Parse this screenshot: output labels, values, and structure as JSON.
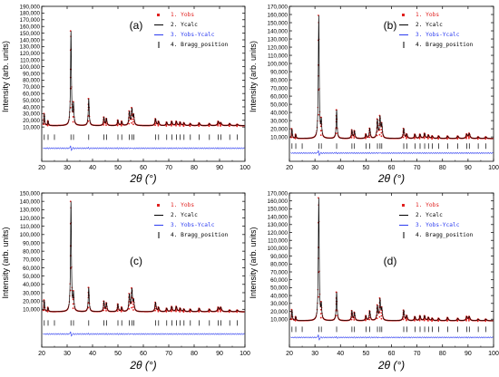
{
  "figure": {
    "panels": [
      {
        "panel_label": "(a)",
        "yticks": [
          "10,000",
          "20,000",
          "30,000",
          "40,000",
          "50,000",
          "60,000",
          "70,000",
          "80,000",
          "90,000",
          "100,000",
          "110,000",
          "120,000",
          "130,000",
          "140,000",
          "150,000",
          "160,000",
          "170,000",
          "180,000",
          "190,000"
        ],
        "xticks": [
          "20",
          "30",
          "40",
          "50",
          "60",
          "70",
          "80",
          "90",
          "100"
        ],
        "ylabel": "Intensity (arb. units)",
        "xlabel": "2θ (°)",
        "legend": [
          "1. Yobs",
          "2. Ycalc",
          "3. Yobs-Ycalc",
          "4. Bragg_position"
        ]
      },
      {
        "panel_label": "(b)",
        "yticks": [
          "10,000",
          "20,000",
          "30,000",
          "40,000",
          "50,000",
          "60,000",
          "70,000",
          "80,000",
          "90,000",
          "100,000",
          "110,000",
          "120,000",
          "130,000",
          "140,000",
          "150,000",
          "160,000",
          "170,000"
        ],
        "xticks": [
          "20",
          "30",
          "40",
          "50",
          "60",
          "70",
          "80",
          "90",
          "100"
        ],
        "ylabel": "Intensity (arb. units)",
        "xlabel": "2θ (°)",
        "legend": [
          "1. Yobs",
          "2. Ycalc",
          "3. Yobs-Ycalc",
          "4. Bragg_position"
        ]
      },
      {
        "panel_label": "(c)",
        "yticks": [
          "10,000",
          "20,000",
          "30,000",
          "40,000",
          "50,000",
          "60,000",
          "70,000",
          "80,000",
          "90,000",
          "100,000",
          "110,000",
          "120,000",
          "130,000",
          "140,000",
          "150,000"
        ],
        "xticks": [
          "20",
          "30",
          "40",
          "50",
          "60",
          "70",
          "80",
          "90",
          "100"
        ],
        "ylabel": "Intensity (arb. units)",
        "xlabel": "2θ (°)",
        "legend": [
          "1. Yobs",
          "2. Ycalc",
          "3. Yobs-Ycalc",
          "4. Bragg_position"
        ]
      },
      {
        "panel_label": "(d)",
        "yticks": [
          "10,000",
          "20,000",
          "30,000",
          "40,000",
          "50,000",
          "60,000",
          "70,000",
          "80,000",
          "90,000",
          "100,000",
          "110,000",
          "120,000",
          "130,000",
          "140,000",
          "150,000",
          "160,000",
          "170,000"
        ],
        "xticks": [
          "20",
          "30",
          "40",
          "50",
          "60",
          "70",
          "80",
          "90",
          "100"
        ],
        "ylabel": "Intensity (arb. units)",
        "xlabel": "2θ (°)",
        "legend": [
          "1. Yobs",
          "2. Ycalc",
          "3. Yobs-Ycalc",
          "4. Bragg_position"
        ]
      }
    ]
  },
  "colors": {
    "yobs": "#e0201e",
    "ycalc": "#000000",
    "diff": "#2c3cf0",
    "bragg": "#000000",
    "axis": "#000000"
  },
  "chart_data": [
    {
      "type": "line",
      "title": "(a)",
      "xlabel": "2θ (°)",
      "ylabel": "Intensity (arb. units)",
      "xlim": [
        20,
        100
      ],
      "ylim": [
        -25000,
        190000
      ],
      "legend_position": "top-right",
      "background": 12000,
      "peaks": [
        [
          21.0,
          18000
        ],
        [
          22.5,
          7000
        ],
        [
          31.5,
          140000
        ],
        [
          32.5,
          30000
        ],
        [
          38.5,
          40000
        ],
        [
          44.5,
          12000
        ],
        [
          45.5,
          10000
        ],
        [
          50.0,
          8000
        ],
        [
          51.5,
          6000
        ],
        [
          54.5,
          20000
        ],
        [
          55.5,
          24000
        ],
        [
          56.2,
          14000
        ],
        [
          64.8,
          10000
        ],
        [
          66.0,
          6000
        ],
        [
          69.2,
          5000
        ],
        [
          71.2,
          6000
        ],
        [
          73.0,
          6000
        ],
        [
          74.5,
          5000
        ],
        [
          76.0,
          4000
        ],
        [
          78.5,
          3000
        ],
        [
          82.0,
          4000
        ],
        [
          86.0,
          3000
        ],
        [
          89.5,
          6000
        ],
        [
          90.5,
          4000
        ],
        [
          94.0,
          3000
        ],
        [
          97.0,
          2000
        ]
      ],
      "bragg_positions": [
        21.0,
        22.5,
        25.0,
        31.5,
        32.5,
        38.5,
        44.5,
        45.5,
        50.0,
        51.5,
        54.5,
        55.5,
        56.2,
        64.8,
        66.0,
        69.2,
        71.2,
        73.0,
        74.5,
        76.0,
        78.5,
        82.0,
        86.0,
        89.5,
        90.5,
        94.0,
        97.0
      ],
      "series": [
        {
          "name": "1. Yobs"
        },
        {
          "name": "2. Ycalc"
        },
        {
          "name": "3. Yobs-Ycalc"
        },
        {
          "name": "4. Bragg_position"
        }
      ]
    },
    {
      "type": "line",
      "title": "(b)",
      "xlabel": "2θ (°)",
      "ylabel": "Intensity (arb. units)",
      "xlim": [
        20,
        100
      ],
      "ylim": [
        -25000,
        170000
      ],
      "legend_position": "top-right",
      "background": 8000,
      "peaks": [
        [
          21.0,
          12000
        ],
        [
          22.5,
          5000
        ],
        [
          31.5,
          150000
        ],
        [
          32.5,
          20000
        ],
        [
          38.5,
          35000
        ],
        [
          44.5,
          10000
        ],
        [
          45.5,
          9000
        ],
        [
          50.0,
          5000
        ],
        [
          51.5,
          12000
        ],
        [
          54.5,
          22000
        ],
        [
          55.5,
          25000
        ],
        [
          56.2,
          16000
        ],
        [
          64.8,
          12000
        ],
        [
          66.0,
          5000
        ],
        [
          69.2,
          5000
        ],
        [
          71.2,
          5000
        ],
        [
          73.0,
          6000
        ],
        [
          74.5,
          4000
        ],
        [
          76.0,
          3000
        ],
        [
          78.5,
          3000
        ],
        [
          82.0,
          3000
        ],
        [
          86.0,
          3000
        ],
        [
          89.5,
          5000
        ],
        [
          90.5,
          6000
        ],
        [
          94.0,
          2000
        ],
        [
          97.0,
          2000
        ]
      ],
      "bragg_positions": [
        21.0,
        22.5,
        25.0,
        31.5,
        32.5,
        38.5,
        44.5,
        45.5,
        50.0,
        51.5,
        54.5,
        55.5,
        56.2,
        64.8,
        66.0,
        69.2,
        71.2,
        73.0,
        74.5,
        76.0,
        78.5,
        82.0,
        86.0,
        89.5,
        90.5,
        94.0,
        97.0
      ],
      "series": [
        {
          "name": "1. Yobs"
        },
        {
          "name": "2. Ycalc"
        },
        {
          "name": "3. Yobs-Ycalc"
        },
        {
          "name": "4. Bragg_position"
        }
      ]
    },
    {
      "type": "line",
      "title": "(c)",
      "xlabel": "2θ (°)",
      "ylabel": "Intensity (arb. units)",
      "xlim": [
        20,
        100
      ],
      "ylim": [
        -25000,
        150000
      ],
      "legend_position": "top-right",
      "background": 7000,
      "peaks": [
        [
          21.0,
          14000
        ],
        [
          22.5,
          5000
        ],
        [
          31.5,
          132000
        ],
        [
          32.5,
          20000
        ],
        [
          38.5,
          29000
        ],
        [
          44.5,
          12000
        ],
        [
          45.5,
          10000
        ],
        [
          50.0,
          9000
        ],
        [
          51.5,
          5000
        ],
        [
          54.5,
          20000
        ],
        [
          55.5,
          26000
        ],
        [
          56.2,
          12000
        ],
        [
          64.8,
          11000
        ],
        [
          66.0,
          5000
        ],
        [
          69.2,
          4000
        ],
        [
          71.2,
          6000
        ],
        [
          73.0,
          6000
        ],
        [
          74.5,
          4000
        ],
        [
          76.0,
          3000
        ],
        [
          78.5,
          3000
        ],
        [
          82.0,
          4000
        ],
        [
          86.0,
          3000
        ],
        [
          89.5,
          5000
        ],
        [
          90.5,
          5000
        ],
        [
          94.0,
          2000
        ],
        [
          97.0,
          2000
        ]
      ],
      "bragg_positions": [
        21.0,
        22.5,
        25.0,
        31.5,
        32.5,
        38.5,
        44.5,
        45.5,
        50.0,
        51.5,
        54.5,
        55.5,
        56.2,
        64.8,
        66.0,
        69.2,
        71.2,
        73.0,
        74.5,
        76.0,
        78.5,
        82.0,
        86.0,
        89.5,
        90.5,
        94.0,
        97.0
      ],
      "series": [
        {
          "name": "1. Yobs"
        },
        {
          "name": "2. Ycalc"
        },
        {
          "name": "3. Yobs-Ycalc"
        },
        {
          "name": "4. Bragg_position"
        }
      ]
    },
    {
      "type": "line",
      "title": "(d)",
      "xlabel": "2θ (°)",
      "ylabel": "Intensity (arb. units)",
      "xlim": [
        20,
        100
      ],
      "ylim": [
        -25000,
        170000
      ],
      "legend_position": "top-right",
      "background": 8000,
      "peaks": [
        [
          21.0,
          14000
        ],
        [
          22.5,
          5000
        ],
        [
          31.5,
          155000
        ],
        [
          32.5,
          18000
        ],
        [
          38.5,
          36000
        ],
        [
          44.5,
          12000
        ],
        [
          45.5,
          10000
        ],
        [
          50.0,
          6000
        ],
        [
          51.5,
          12000
        ],
        [
          54.5,
          18000
        ],
        [
          55.5,
          26000
        ],
        [
          56.2,
          14000
        ],
        [
          64.8,
          13000
        ],
        [
          66.0,
          6000
        ],
        [
          69.2,
          5000
        ],
        [
          71.2,
          6000
        ],
        [
          73.0,
          6000
        ],
        [
          74.5,
          4000
        ],
        [
          76.0,
          3000
        ],
        [
          78.5,
          3000
        ],
        [
          82.0,
          4000
        ],
        [
          86.0,
          3000
        ],
        [
          89.5,
          5000
        ],
        [
          90.5,
          5000
        ],
        [
          94.0,
          2000
        ],
        [
          97.0,
          2000
        ]
      ],
      "bragg_positions": [
        21.0,
        22.5,
        25.0,
        31.5,
        32.5,
        38.5,
        44.5,
        45.5,
        50.0,
        51.5,
        54.5,
        55.5,
        56.2,
        64.8,
        66.0,
        69.2,
        71.2,
        73.0,
        74.5,
        76.0,
        78.5,
        82.0,
        86.0,
        89.5,
        90.5,
        94.0,
        97.0
      ],
      "series": [
        {
          "name": "1. Yobs"
        },
        {
          "name": "2. Ycalc"
        },
        {
          "name": "3. Yobs-Ycalc"
        },
        {
          "name": "4. Bragg_position"
        }
      ]
    }
  ]
}
